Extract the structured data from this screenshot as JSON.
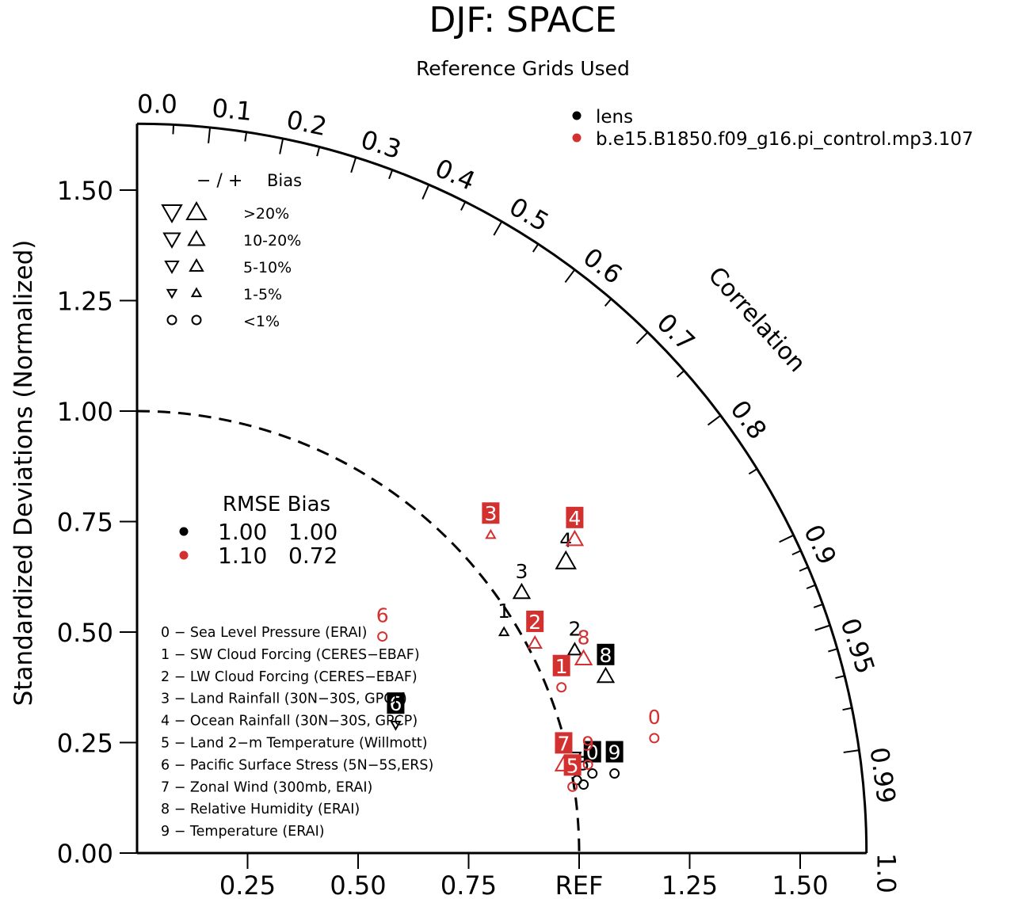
{
  "chart_data": {
    "type": "scatter",
    "subtype": "taylor-diagram",
    "title": "DJF: SPACE",
    "subtitle": "Reference Grids Used",
    "ylabel": "Standardized Deviations (Normalized)",
    "correlation_label": "Correlation",
    "x_ticks": [
      {
        "v": 0.25,
        "label": "0.25"
      },
      {
        "v": 0.5,
        "label": "0.50"
      },
      {
        "v": 0.75,
        "label": "0.75"
      },
      {
        "v": 1.0,
        "label": "REF"
      },
      {
        "v": 1.25,
        "label": "1.25"
      },
      {
        "v": 1.5,
        "label": "1.50"
      }
    ],
    "y_ticks": [
      {
        "v": 0.0,
        "label": "0.00"
      },
      {
        "v": 0.25,
        "label": "0.25"
      },
      {
        "v": 0.5,
        "label": "0.50"
      },
      {
        "v": 0.75,
        "label": "0.75"
      },
      {
        "v": 1.0,
        "label": "1.00"
      },
      {
        "v": 1.25,
        "label": "1.25"
      },
      {
        "v": 1.5,
        "label": "1.50"
      }
    ],
    "corr_ticks_labeled": [
      {
        "r": 0.0,
        "label": "0.0"
      },
      {
        "r": 0.1,
        "label": "0.1"
      },
      {
        "r": 0.2,
        "label": "0.2"
      },
      {
        "r": 0.3,
        "label": "0.3"
      },
      {
        "r": 0.4,
        "label": "0.4"
      },
      {
        "r": 0.5,
        "label": "0.5"
      },
      {
        "r": 0.6,
        "label": "0.6"
      },
      {
        "r": 0.7,
        "label": "0.7"
      },
      {
        "r": 0.8,
        "label": "0.8"
      },
      {
        "r": 0.9,
        "label": "0.9"
      },
      {
        "r": 0.95,
        "label": "0.95"
      },
      {
        "r": 0.99,
        "label": "0.99"
      },
      {
        "r": 1.0,
        "label": "1.0"
      }
    ],
    "corr_ticks_minor": [
      0.05,
      0.15,
      0.25,
      0.35,
      0.45,
      0.55,
      0.65,
      0.75,
      0.85,
      0.91,
      0.92,
      0.93,
      0.94,
      0.96,
      0.97,
      0.98
    ],
    "max_std": 1.65,
    "series": [
      {
        "name": "lens",
        "color": "#000000",
        "points": [
          {
            "id": "0",
            "x": 1.03,
            "y": 0.18,
            "bias": "<1%",
            "dir": "o",
            "box": true
          },
          {
            "id": "1",
            "x": 0.83,
            "y": 0.5,
            "bias": "1-5%",
            "dir": "+",
            "box": false
          },
          {
            "id": "2",
            "x": 0.99,
            "y": 0.46,
            "bias": "5-10%",
            "dir": "+",
            "box": false
          },
          {
            "id": "3",
            "x": 0.87,
            "y": 0.59,
            "bias": "10-20%",
            "dir": "+",
            "box": false
          },
          {
            "id": "4",
            "x": 0.97,
            "y": 0.66,
            "bias": ">20%",
            "dir": "+",
            "box": false
          },
          {
            "id": "5",
            "x": 1.01,
            "y": 0.155,
            "bias": "<1%",
            "dir": "o",
            "box": false
          },
          {
            "id": "6",
            "x": 0.585,
            "y": 0.29,
            "bias": "1-5%",
            "dir": "-",
            "box": true
          },
          {
            "id": "7",
            "x": 0.995,
            "y": 0.165,
            "bias": "<1%",
            "dir": "o",
            "box": false
          },
          {
            "id": "8",
            "x": 1.06,
            "y": 0.4,
            "bias": "10-20%",
            "dir": "+",
            "box": true
          },
          {
            "id": "9",
            "x": 1.08,
            "y": 0.18,
            "bias": "<1%",
            "dir": "o",
            "box": true
          }
        ]
      },
      {
        "name": "b.e15.B1850.f09_g16.pi_control.mp3.107",
        "color": "#d33030",
        "points": [
          {
            "id": "0",
            "x": 1.17,
            "y": 0.26,
            "bias": "<1%",
            "dir": "o",
            "box": false
          },
          {
            "id": "1",
            "x": 0.96,
            "y": 0.375,
            "bias": "<1%",
            "dir": "o",
            "box": true
          },
          {
            "id": "2",
            "x": 0.9,
            "y": 0.475,
            "bias": "5-10%",
            "dir": "+",
            "box": true
          },
          {
            "id": "3",
            "x": 0.8,
            "y": 0.72,
            "bias": "1-5%",
            "dir": "+",
            "box": true
          },
          {
            "id": "4",
            "x": 0.99,
            "y": 0.71,
            "bias": "10-20%",
            "dir": "+",
            "box": true
          },
          {
            "id": "5",
            "x": 0.985,
            "y": 0.15,
            "bias": "<1%",
            "dir": "o",
            "box": true
          },
          {
            "id": "6",
            "x": 0.555,
            "y": 0.49,
            "bias": "<1%",
            "dir": "o",
            "box": false
          },
          {
            "id": "7",
            "x": 0.965,
            "y": 0.2,
            "bias": "10-20%",
            "dir": "+",
            "box": true
          },
          {
            "id": "8",
            "x": 1.01,
            "y": 0.44,
            "bias": "10-20%",
            "dir": "+",
            "box": false
          },
          {
            "id": "9",
            "x": 1.02,
            "y": 0.2,
            "bias": "<1%",
            "dir": "o",
            "box": false
          }
        ]
      }
    ],
    "legend": [
      {
        "label": "lens",
        "color": "#000000"
      },
      {
        "label": "b.e15.B1850.f09_g16.pi_control.mp3.107",
        "color": "#d33030"
      }
    ],
    "bias_legend": {
      "header_sign": "− / +",
      "header_label": "Bias",
      "rows": [
        {
          "label": ">20%",
          "size": 12
        },
        {
          "label": "10-20%",
          "size": 10
        },
        {
          "label": "5-10%",
          "size": 8
        },
        {
          "label": "1-5%",
          "size": 5.5
        },
        {
          "label": "<1%",
          "size": 0
        }
      ]
    },
    "rmse_table": {
      "header": "RMSE Bias",
      "rows": [
        {
          "color": "#000000",
          "rmse": "1.00",
          "bias": "1.00"
        },
        {
          "color": "#d33030",
          "rmse": "1.10",
          "bias": "0.72"
        }
      ]
    },
    "variables": [
      "0 − Sea Level Pressure (ERAI)",
      "1 − SW Cloud Forcing (CERES−EBAF)",
      "2 − LW Cloud Forcing (CERES−EBAF)",
      "3 − Land Rainfall (30N−30S, GPCP)",
      "4 − Ocean Rainfall (30N−30S, GPCP)",
      "5 − Land 2−m Temperature (Willmott)",
      "6 − Pacific Surface Stress (5N−5S,ERS)",
      "7 − Zonal Wind (300mb, ERAI)",
      "8 − Relative Humidity (ERAI)",
      "9 − Temperature (ERAI)"
    ]
  }
}
